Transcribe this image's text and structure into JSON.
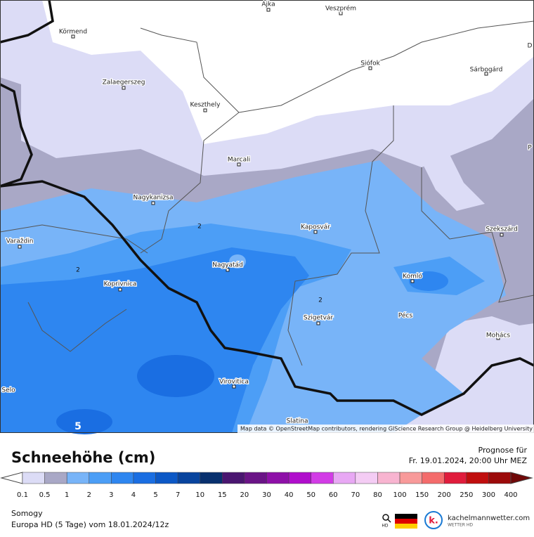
{
  "map": {
    "places": [
      "Ajka",
      "Veszprém",
      "Körmend",
      "Sárbogárd",
      "Zalaegerszeg",
      "Siófok",
      "Keszthely",
      "Marcali",
      "Nagykanizsa",
      "Kaposvár",
      "Szekszárd",
      "Varaždin",
      "Nagyatád",
      "Komló",
      "Koprivnica",
      "Szigetvár",
      "Pécs",
      "Mohács",
      "Virovitica",
      "Selo",
      "Slatina",
      "D",
      "P"
    ],
    "contour_labels": [
      "2",
      "2",
      "2",
      "5"
    ],
    "attribution": "Map data © OpenStreetMap contributors, rendering GIScience Research Group @ Heidelberg University"
  },
  "legend": {
    "title": "Schneehöhe (cm)",
    "ticks": [
      0.1,
      0.5,
      1,
      2,
      3,
      4,
      5,
      7,
      10,
      15,
      20,
      30,
      40,
      50,
      60,
      70,
      80,
      100,
      150,
      200,
      250,
      300,
      400
    ],
    "colors": [
      "#dcdcf6",
      "#a9a8c6",
      "#78b4f8",
      "#4c9ef6",
      "#2e86f0",
      "#1a6ee2",
      "#0c58c6",
      "#08449e",
      "#08306e",
      "#4a1670",
      "#6a1486",
      "#8e10a8",
      "#b00ecc",
      "#d23ce6",
      "#e8a8f4",
      "#f4ccf4",
      "#f8b4d0",
      "#f89a9a",
      "#f46c6c",
      "#e01c3c",
      "#c00e0e",
      "#9c0a0a",
      "#700808"
    ]
  },
  "footer": {
    "forecast_label": "Prognose für",
    "forecast_time": "Fr. 19.01.2024, 20:00 Uhr MEZ",
    "region": "Somogy",
    "model": "Europa HD (5 Tage) vom  18.01.2024/12z",
    "hd": "HD",
    "logo": "k.",
    "brand": "kachelmannwetter.com",
    "brand_sub": "WETTER HD"
  }
}
